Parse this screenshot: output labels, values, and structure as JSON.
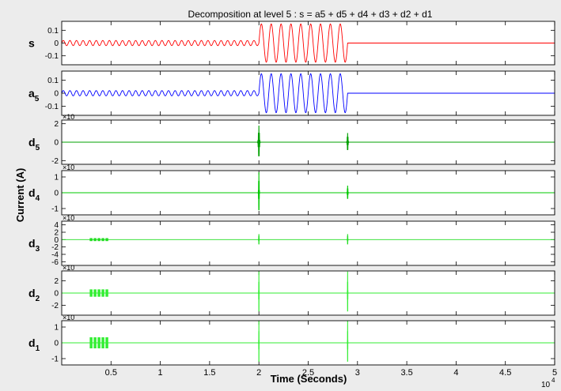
{
  "chart_data": {
    "type": "line",
    "title": "Decomposition at level 5 : s = a5 + d5 + d4 + d3 + d2 + d1",
    "xlabel": "Time (Seconds)",
    "ylabel": "Current (A)",
    "xlim": [
      0,
      5
    ],
    "x_scale_exponent": "4",
    "x_ticks": [
      "0.5",
      "1",
      "1.5",
      "2",
      "2.5",
      "3",
      "3.5",
      "4",
      "4.5",
      "5"
    ],
    "x_tick_values": [
      0.5,
      1,
      1.5,
      2,
      2.5,
      3,
      3.5,
      4,
      4.5,
      5
    ],
    "event_times": [
      2.0,
      2.9
    ],
    "grid": false,
    "panels": [
      {
        "label": "s",
        "sub": "",
        "color": "#ff0000",
        "signal": "sine",
        "ylim": [
          -0.17,
          0.17
        ],
        "y_ticks": [
          "0.1",
          "0",
          "-0.1"
        ],
        "y_tick_values": [
          0.1,
          0,
          -0.1
        ],
        "exponent": "",
        "segments": [
          {
            "start": 0.0,
            "end": 2.0,
            "amplitude": 0.02,
            "cycles": 30
          },
          {
            "start": 2.0,
            "end": 2.9,
            "amplitude": 0.15,
            "cycles": 9
          },
          {
            "start": 2.9,
            "end": 5.0,
            "amplitude": 0.0,
            "cycles": 0
          }
        ]
      },
      {
        "label": "a",
        "sub": "5",
        "color": "#0000ff",
        "signal": "sine",
        "ylim": [
          -0.17,
          0.17
        ],
        "y_ticks": [
          "0.1",
          "0",
          "-0.1"
        ],
        "y_tick_values": [
          0.1,
          0,
          -0.1
        ],
        "exponent": "",
        "segments": [
          {
            "start": 0.0,
            "end": 2.0,
            "amplitude": 0.02,
            "cycles": 30
          },
          {
            "start": 2.0,
            "end": 2.9,
            "amplitude": 0.15,
            "cycles": 9
          },
          {
            "start": 2.9,
            "end": 5.0,
            "amplitude": 0.0,
            "cycles": 0
          }
        ]
      },
      {
        "label": "d",
        "sub": "5",
        "color": "#00a000",
        "signal": "detail",
        "ylim": [
          -2.4,
          2.4
        ],
        "y_ticks": [
          "2",
          "0",
          "-2"
        ],
        "y_tick_values": [
          2,
          0,
          -2
        ],
        "exponent": "×10",
        "spikes": [
          {
            "x": 2.0,
            "amplitude": 1.8,
            "width": 0.015
          },
          {
            "x": 2.9,
            "amplitude": 1.0,
            "width": 0.012
          }
        ],
        "bursts": []
      },
      {
        "label": "d",
        "sub": "4",
        "color": "#00c800",
        "signal": "detail",
        "ylim": [
          -1.4,
          1.4
        ],
        "y_ticks": [
          "1",
          "0",
          "-1"
        ],
        "y_tick_values": [
          1,
          0,
          -1
        ],
        "exponent": "×10",
        "spikes": [
          {
            "x": 2.0,
            "amplitude": 1.3,
            "width": 0.008
          },
          {
            "x": 2.9,
            "amplitude": 0.45,
            "width": 0.008
          }
        ],
        "bursts": []
      },
      {
        "label": "d",
        "sub": "3",
        "color": "#22dd22",
        "signal": "detail",
        "ylim": [
          -7,
          5
        ],
        "y_ticks": [
          "4",
          "2",
          "0",
          "-2",
          "-4",
          "-6"
        ],
        "y_tick_values": [
          4,
          2,
          0,
          -2,
          -4,
          -6
        ],
        "exponent": "×10",
        "spikes": [
          {
            "x": 2.0,
            "amplitude": 1.5,
            "width": 0.005
          },
          {
            "x": 2.9,
            "amplitude": 1.5,
            "width": 0.005
          }
        ],
        "bursts": [
          {
            "start": 0.28,
            "end": 0.48,
            "amplitude": 0.4,
            "dashes": 5
          }
        ]
      },
      {
        "label": "d",
        "sub": "2",
        "color": "#33ee33",
        "signal": "detail",
        "ylim": [
          -3.6,
          3.6
        ],
        "y_ticks": [
          "2",
          "0",
          "-2"
        ],
        "y_tick_values": [
          2,
          0,
          -2
        ],
        "exponent": "×10",
        "spikes": [
          {
            "x": 2.0,
            "amplitude": 3.5,
            "width": 0.004
          },
          {
            "x": 2.9,
            "amplitude": 3.5,
            "width": 0.004
          }
        ],
        "bursts": [
          {
            "start": 0.28,
            "end": 0.48,
            "amplitude": 0.6,
            "dashes": 5
          }
        ]
      },
      {
        "label": "d",
        "sub": "1",
        "color": "#33ee33",
        "signal": "detail",
        "ylim": [
          -1.4,
          1.4
        ],
        "y_ticks": [
          "1",
          "0",
          "-1"
        ],
        "y_tick_values": [
          1,
          0,
          -1
        ],
        "exponent": "×10",
        "spikes": [
          {
            "x": 2.0,
            "amplitude": 1.4,
            "width": 0.003
          },
          {
            "x": 2.9,
            "amplitude": 1.4,
            "width": 0.003
          }
        ],
        "bursts": [
          {
            "start": 0.28,
            "end": 0.48,
            "amplitude": 0.35,
            "dashes": 5
          }
        ]
      }
    ]
  }
}
